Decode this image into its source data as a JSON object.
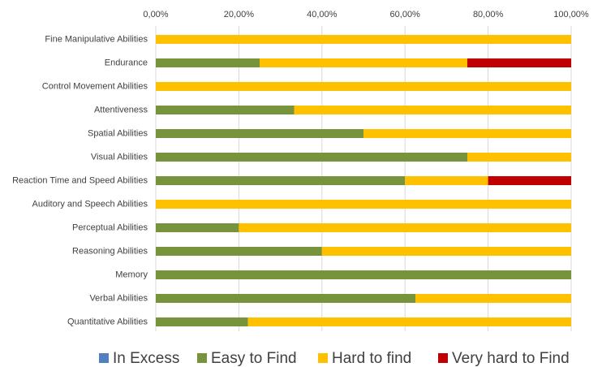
{
  "chart_data": {
    "type": "stacked-bar-horizontal",
    "categories": [
      "Fine Manipulative Abilities",
      "Endurance",
      "Control Movement Abilities",
      "Attentiveness",
      "Spatial Abilities",
      "Visual Abilities",
      "Reaction Time and Speed Abilities",
      "Auditory and Speech Abilities",
      "Perceptual Abilities",
      "Reasoning Abilities",
      "Memory",
      "Verbal Abilities",
      "Quantitative Abilities"
    ],
    "series": [
      {
        "name": "In Excess",
        "color": "#4f81bd",
        "values": [
          0,
          0,
          0,
          0,
          0,
          0,
          0,
          0,
          0,
          0,
          0,
          0,
          0
        ]
      },
      {
        "name": "Easy to Find",
        "color": "#77933c",
        "values": [
          0,
          25,
          0,
          33.3,
          50,
          75,
          60,
          0,
          20,
          40,
          100,
          62.5,
          22.2
        ]
      },
      {
        "name": "Hard to find",
        "color": "#ffc000",
        "values": [
          100,
          50,
          100,
          66.7,
          50,
          25,
          20,
          100,
          80,
          60,
          0,
          37.5,
          77.8
        ]
      },
      {
        "name": "Very hard to Find",
        "color": "#c00000",
        "values": [
          0,
          25,
          0,
          0,
          0,
          0,
          20,
          0,
          0,
          0,
          0,
          0,
          0
        ]
      }
    ],
    "xlim": [
      0,
      100
    ],
    "xticks": [
      {
        "value": 0,
        "label": "0,00%"
      },
      {
        "value": 20,
        "label": "20,00%"
      },
      {
        "value": 40,
        "label": "40,00%"
      },
      {
        "value": 60,
        "label": "60,00%"
      },
      {
        "value": 80,
        "label": "80,00%"
      },
      {
        "value": 100,
        "label": "100,00%"
      }
    ],
    "grid": true,
    "legend": "bottom"
  }
}
